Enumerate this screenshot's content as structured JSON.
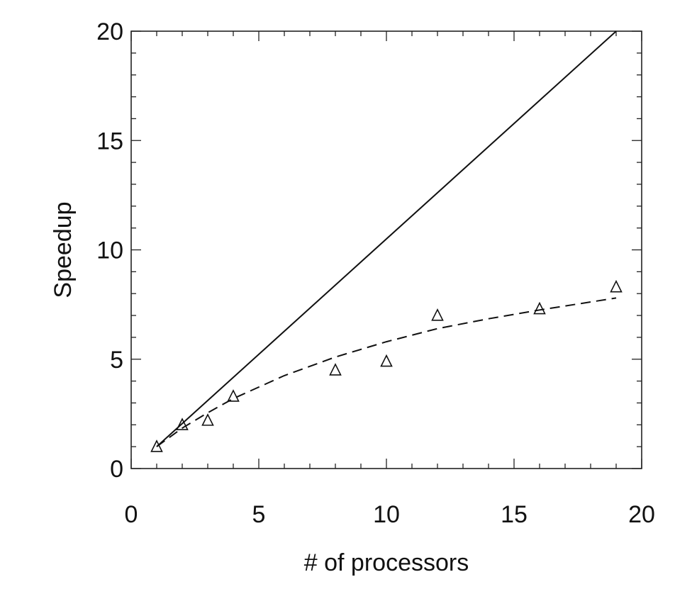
{
  "chart_data": {
    "type": "line",
    "title": "",
    "xlabel": "# of processors",
    "ylabel": "Speedup",
    "xlim": [
      0,
      20
    ],
    "ylim": [
      0,
      20
    ],
    "xticks": [
      "0",
      "5",
      "10",
      "15",
      "20"
    ],
    "yticks": [
      "0",
      "5",
      "10",
      "15",
      "20"
    ],
    "grid": false,
    "legend": "none",
    "series": [
      {
        "style": "solid",
        "color": "#111111",
        "x": [
          1,
          19
        ],
        "y": [
          1,
          20
        ]
      },
      {
        "style": "dashed",
        "color": "#111111",
        "x": [
          1,
          2,
          3,
          4,
          6,
          8,
          10,
          12,
          14,
          16,
          19
        ],
        "y": [
          1.0,
          1.85,
          2.55,
          3.2,
          4.25,
          5.1,
          5.8,
          6.4,
          6.85,
          7.25,
          7.8
        ]
      },
      {
        "style": "markers",
        "marker": "open-triangle",
        "color": "#111111",
        "x": [
          1,
          2,
          3,
          4,
          8,
          10,
          12,
          16,
          19
        ],
        "y": [
          1.0,
          2.0,
          2.2,
          3.3,
          4.5,
          4.9,
          7.0,
          7.3,
          8.3
        ]
      }
    ]
  }
}
